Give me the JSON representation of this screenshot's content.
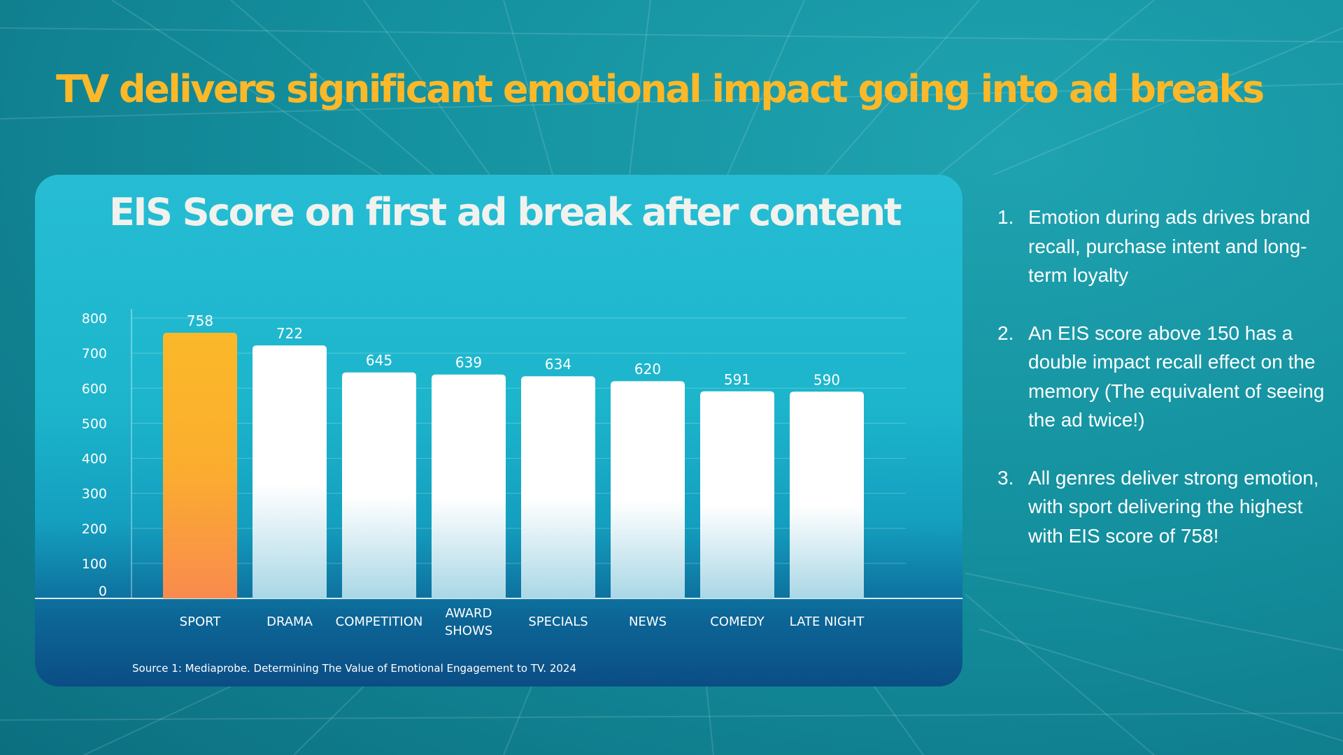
{
  "slide": {
    "headline": "TV delivers significant emotional impact going into ad breaks",
    "colors": {
      "accent": "#fbb829",
      "background": "#14909e",
      "bar": "#ffffff"
    }
  },
  "chart_data": {
    "type": "bar",
    "title": "EIS Score on first ad break after content",
    "categories": [
      "SPORT",
      "DRAMA",
      "COMPETITION",
      "AWARD SHOWS",
      "SPECIALS",
      "NEWS",
      "COMEDY",
      "LATE NIGHT"
    ],
    "category_lines": [
      [
        "SPORT"
      ],
      [
        "DRAMA"
      ],
      [
        "COMPETITION"
      ],
      [
        "AWARD",
        "SHOWS"
      ],
      [
        "SPECIALS"
      ],
      [
        "NEWS"
      ],
      [
        "COMEDY"
      ],
      [
        "LATE NIGHT"
      ]
    ],
    "values": [
      758,
      722,
      645,
      639,
      634,
      620,
      591,
      590
    ],
    "value_labels": [
      "758",
      "722",
      "645",
      "639",
      "634",
      "620",
      "591",
      "590"
    ],
    "highlight_index": 0,
    "yticks": [
      0,
      100,
      200,
      300,
      400,
      500,
      600,
      700,
      800
    ],
    "ytick_labels": [
      "0",
      "100",
      "200",
      "300",
      "400",
      "500",
      "600",
      "700",
      "800"
    ],
    "ylim": [
      0,
      800
    ],
    "xlabel": "",
    "ylabel": "",
    "grid": true,
    "source": "Source 1: Mediaprobe. Determining The Value of Emotional Engagement to TV. 2024"
  },
  "notes": [
    {
      "number": "1.",
      "text": "Emotion during ads drives brand recall, purchase intent and long-term loyalty"
    },
    {
      "number": "2.",
      "text": "An EIS score above 150 has a double impact recall effect on the memory (The equivalent of seeing the ad twice!)"
    },
    {
      "number": "3.",
      "text": "All genres deliver strong emotion, with sport delivering the highest with EIS score of 758!"
    }
  ]
}
